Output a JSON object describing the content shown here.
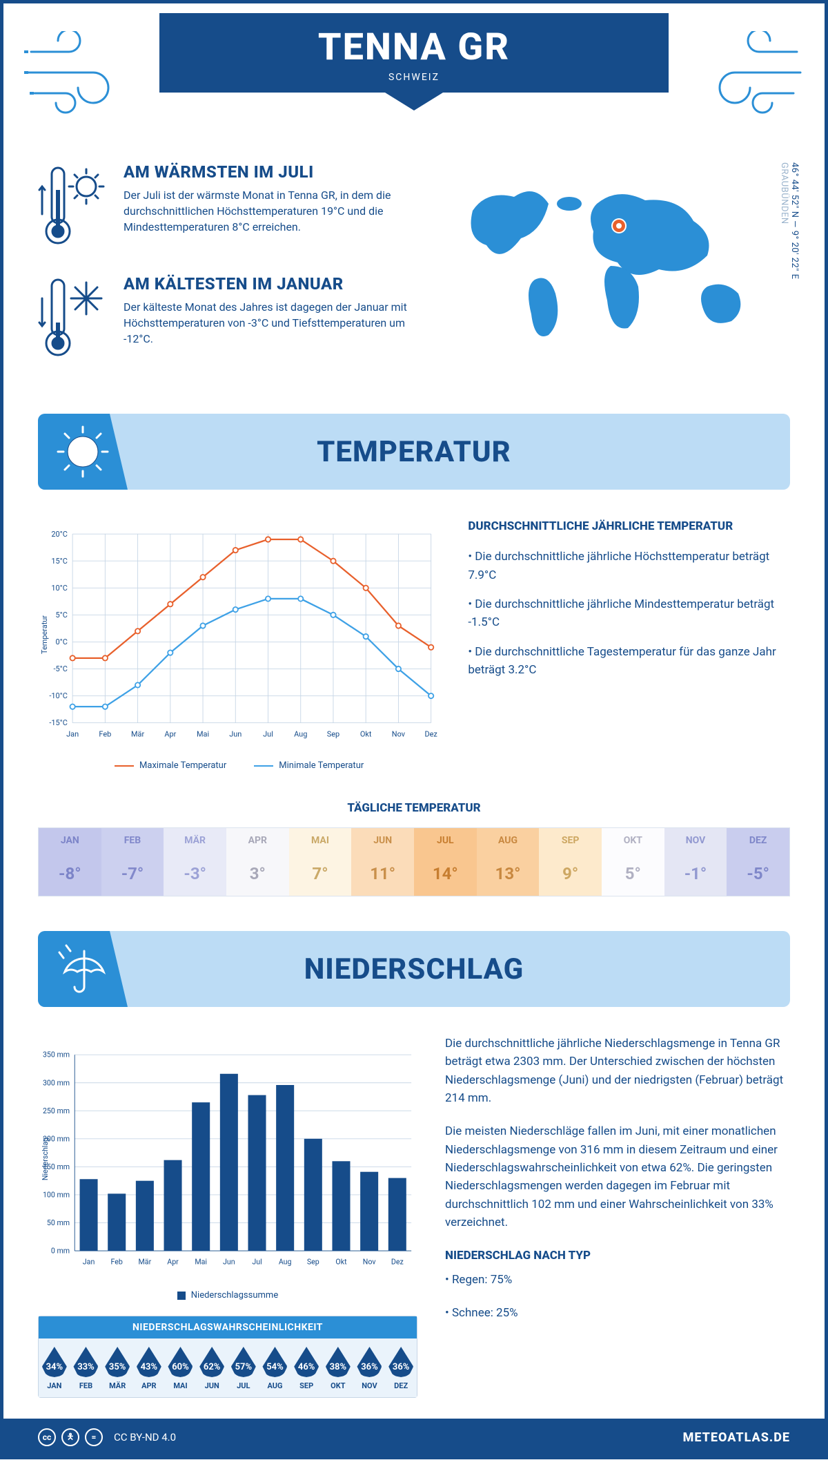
{
  "header": {
    "title": "TENNA GR",
    "subtitle": "SCHWEIZ"
  },
  "coords": {
    "lat": "46° 44' 52\" N",
    "lon": "9° 20' 22\" E",
    "region": "GRAUBÜNDEN"
  },
  "warm": {
    "title": "AM WÄRMSTEN IM JULI",
    "text": "Der Juli ist der wärmste Monat in Tenna GR, in dem die durchschnittlichen Höchsttemperaturen 19°C und die Mindesttemperaturen 8°C erreichen."
  },
  "cold": {
    "title": "AM KÄLTESTEN IM JANUAR",
    "text": "Der kälteste Monat des Jahres ist dagegen der Januar mit Höchsttemperaturen von -3°C und Tiefsttemperaturen um -12°C."
  },
  "section_temp": "TEMPERATUR",
  "section_precip": "NIEDERSCHLAG",
  "months": [
    "Jan",
    "Feb",
    "Mär",
    "Apr",
    "Mai",
    "Jun",
    "Jul",
    "Aug",
    "Sep",
    "Okt",
    "Nov",
    "Dez"
  ],
  "months_uc": [
    "JAN",
    "FEB",
    "MÄR",
    "APR",
    "MAI",
    "JUN",
    "JUL",
    "AUG",
    "SEP",
    "OKT",
    "NOV",
    "DEZ"
  ],
  "temp_chart": {
    "ylabel": "Temperatur",
    "ylim": [
      -15,
      20
    ],
    "ytick_step": 5,
    "max_series": [
      -3,
      -3,
      2,
      7,
      12,
      17,
      19,
      19,
      15,
      10,
      3,
      -1
    ],
    "min_series": [
      -12,
      -12,
      -8,
      -2,
      3,
      6,
      8,
      8,
      5,
      1,
      -5,
      -10
    ],
    "max_color": "#e8602c",
    "min_color": "#3ea1e6",
    "grid_color": "#c7d6e6",
    "legend_max": "Maximale Temperatur",
    "legend_min": "Minimale Temperatur"
  },
  "temp_text": {
    "title": "DURCHSCHNITTLICHE JÄHRLICHE TEMPERATUR",
    "p1": "• Die durchschnittliche jährliche Höchsttemperatur beträgt 7.9°C",
    "p2": "• Die durchschnittliche jährliche Mindesttemperatur beträgt -1.5°C",
    "p3": "• Die durchschnittliche Tagestemperatur für das ganze Jahr beträgt 3.2°C"
  },
  "daily_temp": {
    "title": "TÄGLICHE TEMPERATUR",
    "values": [
      "-8°",
      "-7°",
      "-3°",
      "3°",
      "7°",
      "11°",
      "14°",
      "13°",
      "9°",
      "5°",
      "-1°",
      "-5°"
    ],
    "bg_colors": [
      "#c3c7ec",
      "#ccd0ef",
      "#e8eaf7",
      "#f7f7fa",
      "#fdf4e3",
      "#fbdcb9",
      "#f9c68f",
      "#fad0a0",
      "#fdeacc",
      "#fcfcfe",
      "#e4e6f4",
      "#c9cdee"
    ],
    "txt_colors": [
      "#7c84c8",
      "#8289cb",
      "#9ca2d6",
      "#a8a8b8",
      "#caa968",
      "#c9904b",
      "#c77e30",
      "#c88840",
      "#cda762",
      "#b0b0c2",
      "#9198d0",
      "#7f87c9"
    ]
  },
  "precip_chart": {
    "ylabel": "Niederschlag",
    "ylim": [
      0,
      350
    ],
    "ytick_step": 50,
    "values": [
      128,
      102,
      125,
      162,
      265,
      316,
      278,
      296,
      200,
      160,
      141,
      130
    ],
    "bar_color": "#164c8a",
    "legend": "Niederschlagssumme"
  },
  "precip_text": {
    "p1": "Die durchschnittliche jährliche Niederschlagsmenge in Tenna GR beträgt etwa 2303 mm. Der Unterschied zwischen der höchsten Niederschlagsmenge (Juni) und der niedrigsten (Februar) beträgt 214 mm.",
    "p2": "Die meisten Niederschläge fallen im Juni, mit einer monatlichen Niederschlagsmenge von 316 mm in diesem Zeitraum und einer Niederschlagswahrscheinlichkeit von etwa 62%. Die geringsten Niederschlagsmengen werden dagegen im Februar mit durchschnittlich 102 mm und einer Wahrscheinlichkeit von 33% verzeichnet.",
    "type_title": "NIEDERSCHLAG NACH TYP",
    "type1": "• Regen: 75%",
    "type2": "• Schnee: 25%"
  },
  "prob": {
    "title": "NIEDERSCHLAGSWAHRSCHEINLICHKEIT",
    "values": [
      "34%",
      "33%",
      "35%",
      "43%",
      "60%",
      "62%",
      "57%",
      "54%",
      "46%",
      "38%",
      "36%",
      "36%"
    ]
  },
  "footer": {
    "license": "CC BY-ND 4.0",
    "brand": "METEOATLAS.DE"
  }
}
